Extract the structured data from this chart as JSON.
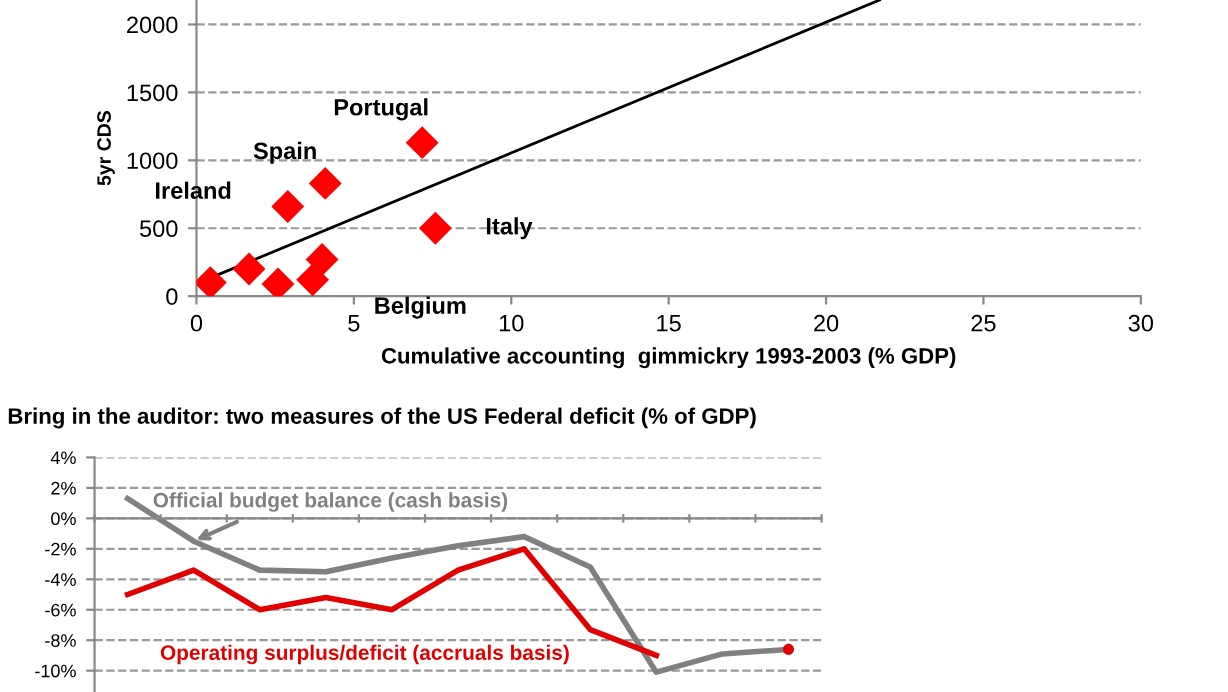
{
  "chart_data": [
    {
      "type": "scatter",
      "xlabel": "Cumulative accounting  gimmickry 1993-2003 (% GDP)",
      "ylabel": "5yr CDS",
      "xlim": [
        0,
        30
      ],
      "xticks": [
        0,
        5,
        10,
        15,
        20,
        25,
        30
      ],
      "ylim": [
        0,
        2180
      ],
      "yticks": [
        0,
        500,
        1000,
        1500,
        2000
      ],
      "grid": "y",
      "marker": "diamond",
      "series": [
        {
          "type": "scatter",
          "color": "#ff0000",
          "x": [
            0.44,
            1.67,
            2.59,
            2.9,
            3.69,
            3.99,
            4.09,
            7.17,
            7.59
          ],
          "values": [
            100,
            200,
            90,
            660,
            120,
            270,
            830,
            1130,
            500
          ]
        },
        {
          "type": "line",
          "color": "#000000",
          "marker": "none",
          "x": [
            0.5,
            21.7
          ],
          "values": [
            140,
            2180
          ]
        }
      ],
      "annotations": [
        {
          "text": "Portugal",
          "x": 7.17,
          "y": 1130
        },
        {
          "text": "Spain",
          "x": 4.09,
          "y": 830
        },
        {
          "text": "Ireland",
          "x": 2.9,
          "y": 660
        },
        {
          "text": "Italy",
          "x": 7.59,
          "y": 500
        },
        {
          "text": "Belgium",
          "x": 3.69,
          "y": 120
        }
      ]
    },
    {
      "type": "line",
      "title": "Bring in the auditor: two measures of the US Federal deficit (% of GDP)",
      "categories": [
        null,
        null,
        null,
        null,
        null,
        null,
        null,
        null,
        null,
        null,
        null
      ],
      "ylim": [
        -11.4,
        4
      ],
      "yticks": [
        {
          "value": 4,
          "label": "4%"
        },
        {
          "value": 2,
          "label": "2%"
        },
        {
          "value": 0,
          "label": "0%"
        },
        {
          "value": -2,
          "label": "-2%"
        },
        {
          "value": -4,
          "label": "-4%"
        },
        {
          "value": -6,
          "label": "-6%"
        },
        {
          "value": -8,
          "label": "-8%"
        },
        {
          "value": -10,
          "label": "-10%"
        }
      ],
      "grid": "y",
      "marker": "none",
      "series": [
        {
          "name": "Official budget balance (cash basis)",
          "color": "#808080",
          "values": [
            1.3,
            -1.5,
            -3.4,
            -3.5,
            -2.6,
            -1.8,
            -1.2,
            -3.2,
            -10.1,
            -8.9,
            -8.6
          ]
        },
        {
          "name": "Operating surplus/deficit (accruals basis)",
          "color": "#e00000",
          "values": [
            -5.0,
            -3.4,
            -6.0,
            -5.2,
            -6.0,
            -3.4,
            -2.0,
            -7.3,
            -9.0,
            null,
            -8.6
          ]
        }
      ]
    }
  ]
}
